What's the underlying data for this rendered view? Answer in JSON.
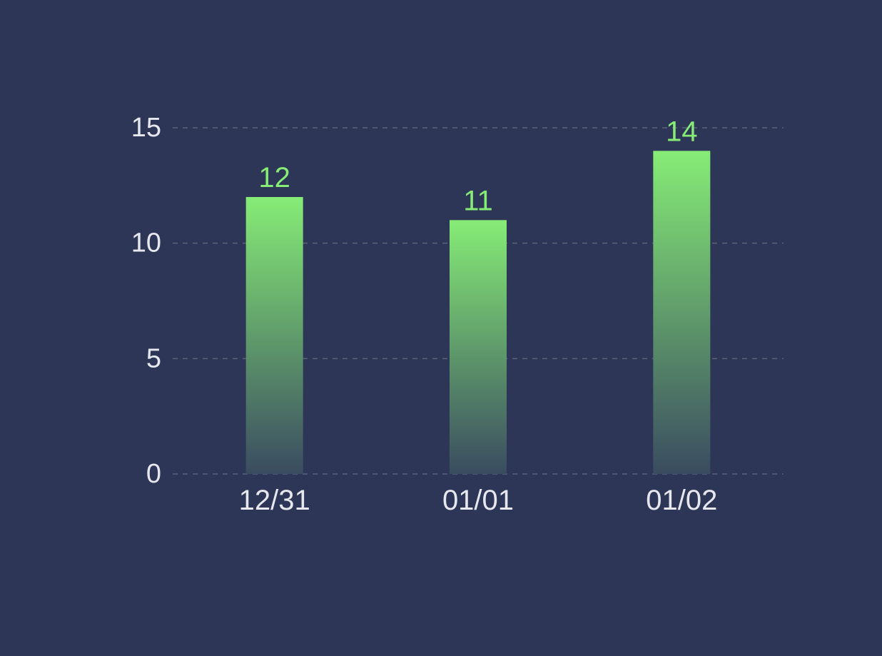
{
  "colors": {
    "background": "#2d3656",
    "bar_top": "#86ec76",
    "bar_bottom": "#3a4c60",
    "value_label": "#86ec76",
    "axis_text": "#e6e8ee",
    "grid": "#5b6378"
  },
  "chart_data": {
    "type": "bar",
    "categories": [
      "12/31",
      "01/01",
      "01/02"
    ],
    "values": [
      12,
      11,
      14
    ],
    "ylim": [
      0,
      15
    ],
    "yticks": [
      0,
      5,
      10,
      15
    ],
    "ytick_labels": [
      "0",
      "5",
      "10",
      "15"
    ],
    "value_labels": [
      "12",
      "11",
      "14"
    ],
    "title": "",
    "xlabel": "",
    "ylabel": "",
    "grid": true,
    "grid_style": "dashed",
    "legend": "none"
  }
}
